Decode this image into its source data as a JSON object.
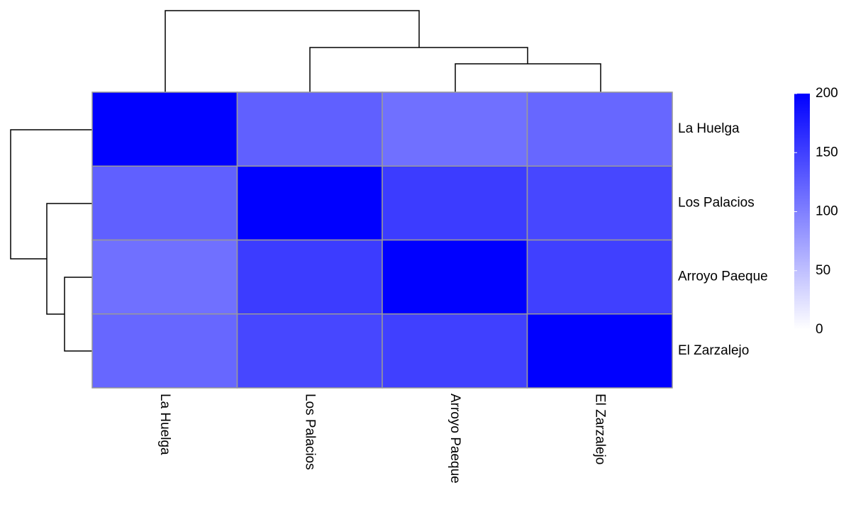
{
  "chart_data": {
    "type": "heatmap",
    "rows": [
      "La Huelga",
      "Los Palacios",
      "Arroyo Paeque",
      "El Zarzalejo"
    ],
    "columns": [
      "La Huelga",
      "Los Palacios",
      "Arroyo Paeque",
      "El Zarzalejo"
    ],
    "values": [
      [
        200,
        125,
        112,
        119
      ],
      [
        125,
        200,
        153,
        144
      ],
      [
        112,
        153,
        200,
        150
      ],
      [
        119,
        144,
        150,
        200
      ]
    ],
    "zlim": [
      0,
      200
    ],
    "zticks": [
      0,
      50,
      100,
      150,
      200
    ],
    "low_color": "#ffffff",
    "high_color": "#0000ff",
    "border_color": "#999999"
  }
}
